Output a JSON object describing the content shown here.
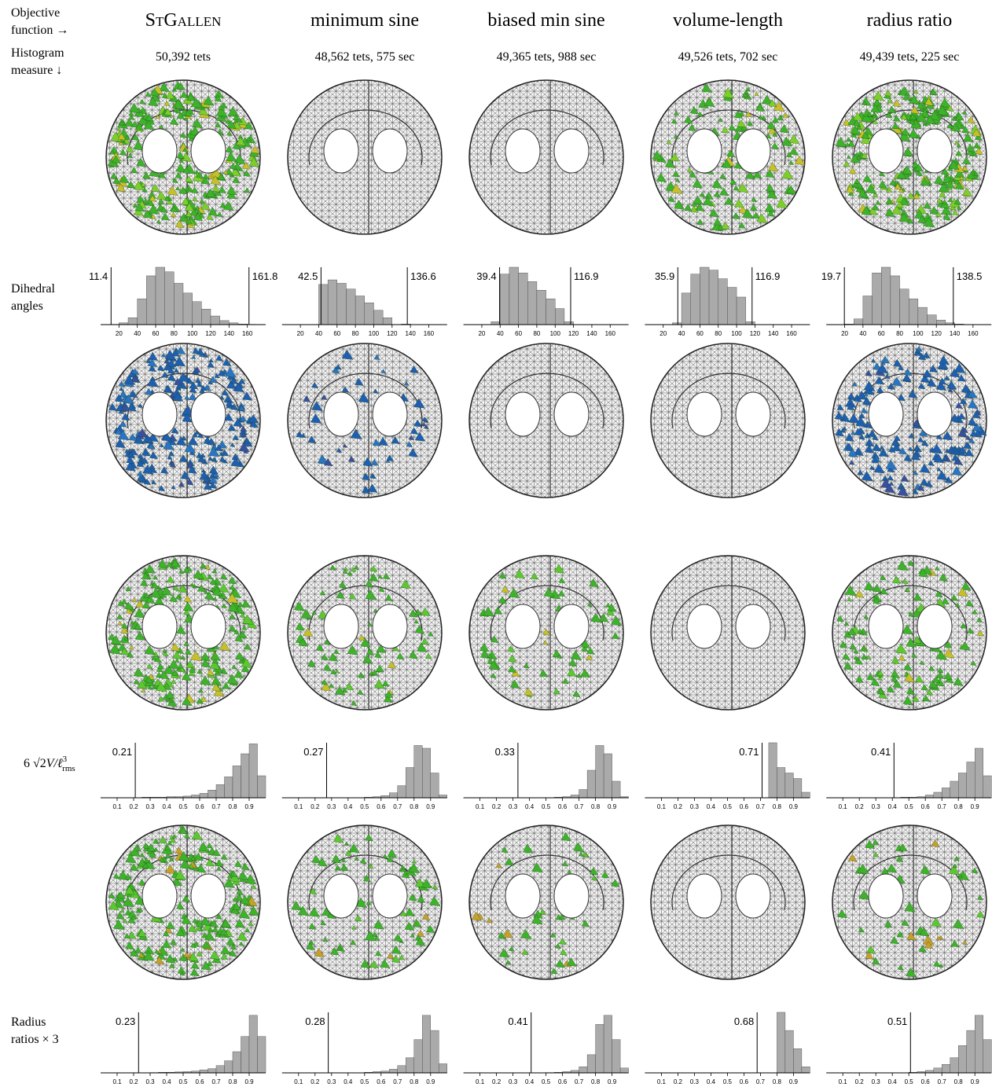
{
  "header": {
    "objective_label": [
      "Objective",
      "function →"
    ],
    "measure_label": [
      "Histogram",
      "measure ↓"
    ]
  },
  "columns": [
    {
      "name": "StGallen",
      "stats": "50,392 tets"
    },
    {
      "name": "minimum sine",
      "stats": "48,562 tets, 575 sec"
    },
    {
      "name": "biased min sine",
      "stats": "49,365 tets, 988 sec"
    },
    {
      "name": "volume-length",
      "stats": "49,526 tets, 702 sec"
    },
    {
      "name": "radius ratio",
      "stats": "49,439 tets, 225 sec"
    }
  ],
  "measures": [
    {
      "type": "histogram",
      "label": [
        "Dihedral",
        "angles"
      ],
      "xlim": [
        0,
        180
      ],
      "ylim": [
        0,
        100
      ],
      "color": "#aaaaaa",
      "xticks": [
        20,
        40,
        60,
        80,
        100,
        120,
        140,
        160
      ],
      "bins": [
        0,
        10,
        20,
        30,
        40,
        50,
        60,
        70,
        80,
        90,
        100,
        110,
        120,
        130,
        140,
        150,
        160,
        170,
        180
      ],
      "panels": [
        {
          "min": 11.4,
          "max": 161.8,
          "counts": [
            0,
            0.5,
            3,
            12,
            45,
            85,
            100,
            92,
            72,
            55,
            40,
            27,
            15,
            7,
            3,
            1,
            0.5,
            0
          ]
        },
        {
          "min": 42.5,
          "max": 136.6,
          "counts": [
            0,
            0,
            0,
            0,
            70,
            78,
            72,
            62,
            50,
            38,
            25,
            12,
            0,
            1,
            0,
            0,
            0,
            0
          ]
        },
        {
          "min": 39.4,
          "max": 116.9,
          "counts": [
            0,
            0,
            0,
            5,
            88,
            100,
            90,
            75,
            60,
            45,
            28,
            5,
            0,
            0,
            0,
            0,
            0,
            0
          ]
        },
        {
          "min": 35.9,
          "max": 116.9,
          "counts": [
            0,
            0,
            0,
            3,
            55,
            88,
            100,
            95,
            80,
            65,
            48,
            5,
            0,
            0,
            0,
            0,
            0,
            0
          ]
        },
        {
          "min": 19.7,
          "max": 138.5,
          "counts": [
            0,
            0,
            1,
            10,
            50,
            90,
            100,
            85,
            62,
            45,
            30,
            17,
            8,
            3,
            1,
            0,
            0,
            0
          ]
        }
      ]
    },
    {
      "type": "histogram",
      "formula": {
        "prefix": "6 √2",
        "var": "V/ℓ",
        "sup": "3",
        "sub": "rms"
      },
      "xlim": [
        0,
        1
      ],
      "ylim": [
        0,
        100
      ],
      "color": "#aaaaaa",
      "xticks": [
        0.1,
        0.2,
        0.3,
        0.4,
        0.5,
        0.6,
        0.7,
        0.8,
        0.9
      ],
      "bins": [
        0,
        0.05,
        0.1,
        0.15,
        0.2,
        0.25,
        0.3,
        0.35,
        0.4,
        0.45,
        0.5,
        0.55,
        0.6,
        0.65,
        0.7,
        0.75,
        0.8,
        0.85,
        0.9,
        0.95,
        1
      ],
      "panels": [
        {
          "min": 0.21,
          "counts": [
            0,
            0,
            0,
            0,
            0,
            1,
            1,
            1,
            2,
            2,
            3,
            5,
            8,
            14,
            24,
            38,
            58,
            80,
            98,
            40
          ]
        },
        {
          "min": 0.27,
          "counts": [
            0,
            0,
            0,
            0,
            0,
            0,
            0,
            0,
            0,
            0,
            1,
            2,
            4,
            9,
            22,
            55,
            95,
            90,
            45,
            5
          ]
        },
        {
          "min": 0.33,
          "counts": [
            0,
            0,
            0,
            0,
            0,
            0,
            0,
            0,
            0,
            0,
            0,
            1,
            2,
            5,
            15,
            50,
            95,
            80,
            30,
            2
          ]
        },
        {
          "min": 0.71,
          "counts": [
            0,
            0,
            0,
            0,
            0,
            0,
            0,
            0,
            0,
            0,
            0,
            0,
            0,
            0,
            0,
            100,
            55,
            45,
            35,
            10
          ]
        },
        {
          "min": 0.41,
          "counts": [
            0,
            0,
            0,
            0,
            0,
            0,
            0,
            0,
            0,
            1,
            1,
            2,
            5,
            10,
            18,
            30,
            45,
            65,
            90,
            40
          ]
        }
      ]
    },
    {
      "type": "histogram",
      "label": [
        "Radius",
        "ratios × 3"
      ],
      "xlim": [
        0,
        1
      ],
      "ylim": [
        0,
        100
      ],
      "color": "#aaaaaa",
      "xticks": [
        0.1,
        0.2,
        0.3,
        0.4,
        0.5,
        0.6,
        0.7,
        0.8,
        0.9
      ],
      "bins": [
        0,
        0.05,
        0.1,
        0.15,
        0.2,
        0.25,
        0.3,
        0.35,
        0.4,
        0.45,
        0.5,
        0.55,
        0.6,
        0.65,
        0.7,
        0.75,
        0.8,
        0.85,
        0.9,
        0.95,
        1
      ],
      "panels": [
        {
          "min": 0.23,
          "counts": [
            0,
            0,
            0,
            0,
            0,
            0,
            0.5,
            1,
            1,
            1.5,
            2,
            3,
            5,
            7,
            12,
            20,
            35,
            60,
            95,
            60
          ]
        },
        {
          "min": 0.28,
          "counts": [
            0,
            0,
            0,
            0,
            0,
            0,
            0,
            0,
            0,
            0,
            1,
            2,
            3,
            6,
            12,
            25,
            55,
            95,
            70,
            15
          ]
        },
        {
          "min": 0.41,
          "counts": [
            0,
            0,
            0,
            0,
            0,
            0,
            0,
            0,
            0,
            0,
            0.5,
            1,
            2,
            4,
            10,
            30,
            80,
            95,
            55,
            8
          ]
        },
        {
          "min": 0.68,
          "counts": [
            0,
            0,
            0,
            0,
            0,
            0,
            0,
            0,
            0,
            0,
            0,
            0,
            0,
            0,
            0,
            0,
            100,
            70,
            40,
            10
          ]
        },
        {
          "min": 0.51,
          "counts": [
            0,
            0,
            0,
            0,
            0,
            0,
            0,
            0,
            0,
            0,
            1,
            2,
            4,
            8,
            14,
            25,
            45,
            70,
            95,
            55
          ]
        }
      ]
    }
  ]
}
